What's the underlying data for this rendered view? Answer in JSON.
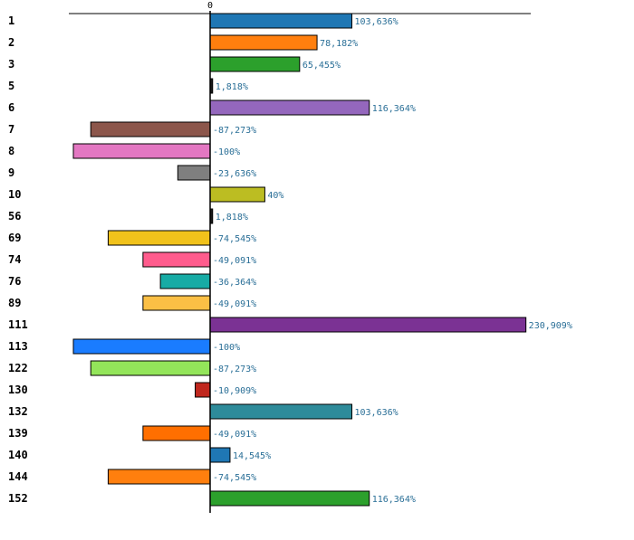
{
  "chart_data": {
    "type": "bar",
    "orientation": "horizontal",
    "title": "",
    "xlabel": "",
    "ylabel": "",
    "zero_tick_label": "0",
    "xlim": [
      -100,
      230.909
    ],
    "grid": false,
    "categories": [
      "1",
      "2",
      "3",
      "5",
      "6",
      "7",
      "8",
      "9",
      "10",
      "56",
      "69",
      "74",
      "76",
      "89",
      "111",
      "113",
      "122",
      "130",
      "132",
      "139",
      "140",
      "144",
      "152"
    ],
    "values": [
      103.636,
      78.182,
      65.455,
      1.818,
      116.364,
      -87.273,
      -100,
      -23.636,
      40,
      1.818,
      -74.545,
      -49.091,
      -36.364,
      -49.091,
      230.909,
      -100,
      -87.273,
      -10.909,
      103.636,
      -49.091,
      14.545,
      -74.545,
      116.364
    ],
    "value_labels": [
      "103,636%",
      "78,182%",
      "65,455%",
      "1,818%",
      "116,364%",
      "-87,273%",
      "-100%",
      "-23,636%",
      "40%",
      "1,818%",
      "-74,545%",
      "-49,091%",
      "-36,364%",
      "-49,091%",
      "230,909%",
      "-100%",
      "-87,273%",
      "-10,909%",
      "103,636%",
      "-49,091%",
      "14,545%",
      "-74,545%",
      "116,364%"
    ],
    "colors": [
      "#1f77b4",
      "#ff7f0e",
      "#2ca02c",
      "#1a1a1a",
      "#9467bd",
      "#8c564b",
      "#e377c2",
      "#7f7f7f",
      "#bcbd22",
      "#1a1a1a",
      "#f1c21b",
      "#ff5c8d",
      "#17aba5",
      "#fbbf45",
      "#7b3294",
      "#1a7cff",
      "#93e55a",
      "#c0271e",
      "#2e8b9a",
      "#ff6f00",
      "#1f77b4",
      "#ff7f0e",
      "#2ca02c"
    ]
  }
}
